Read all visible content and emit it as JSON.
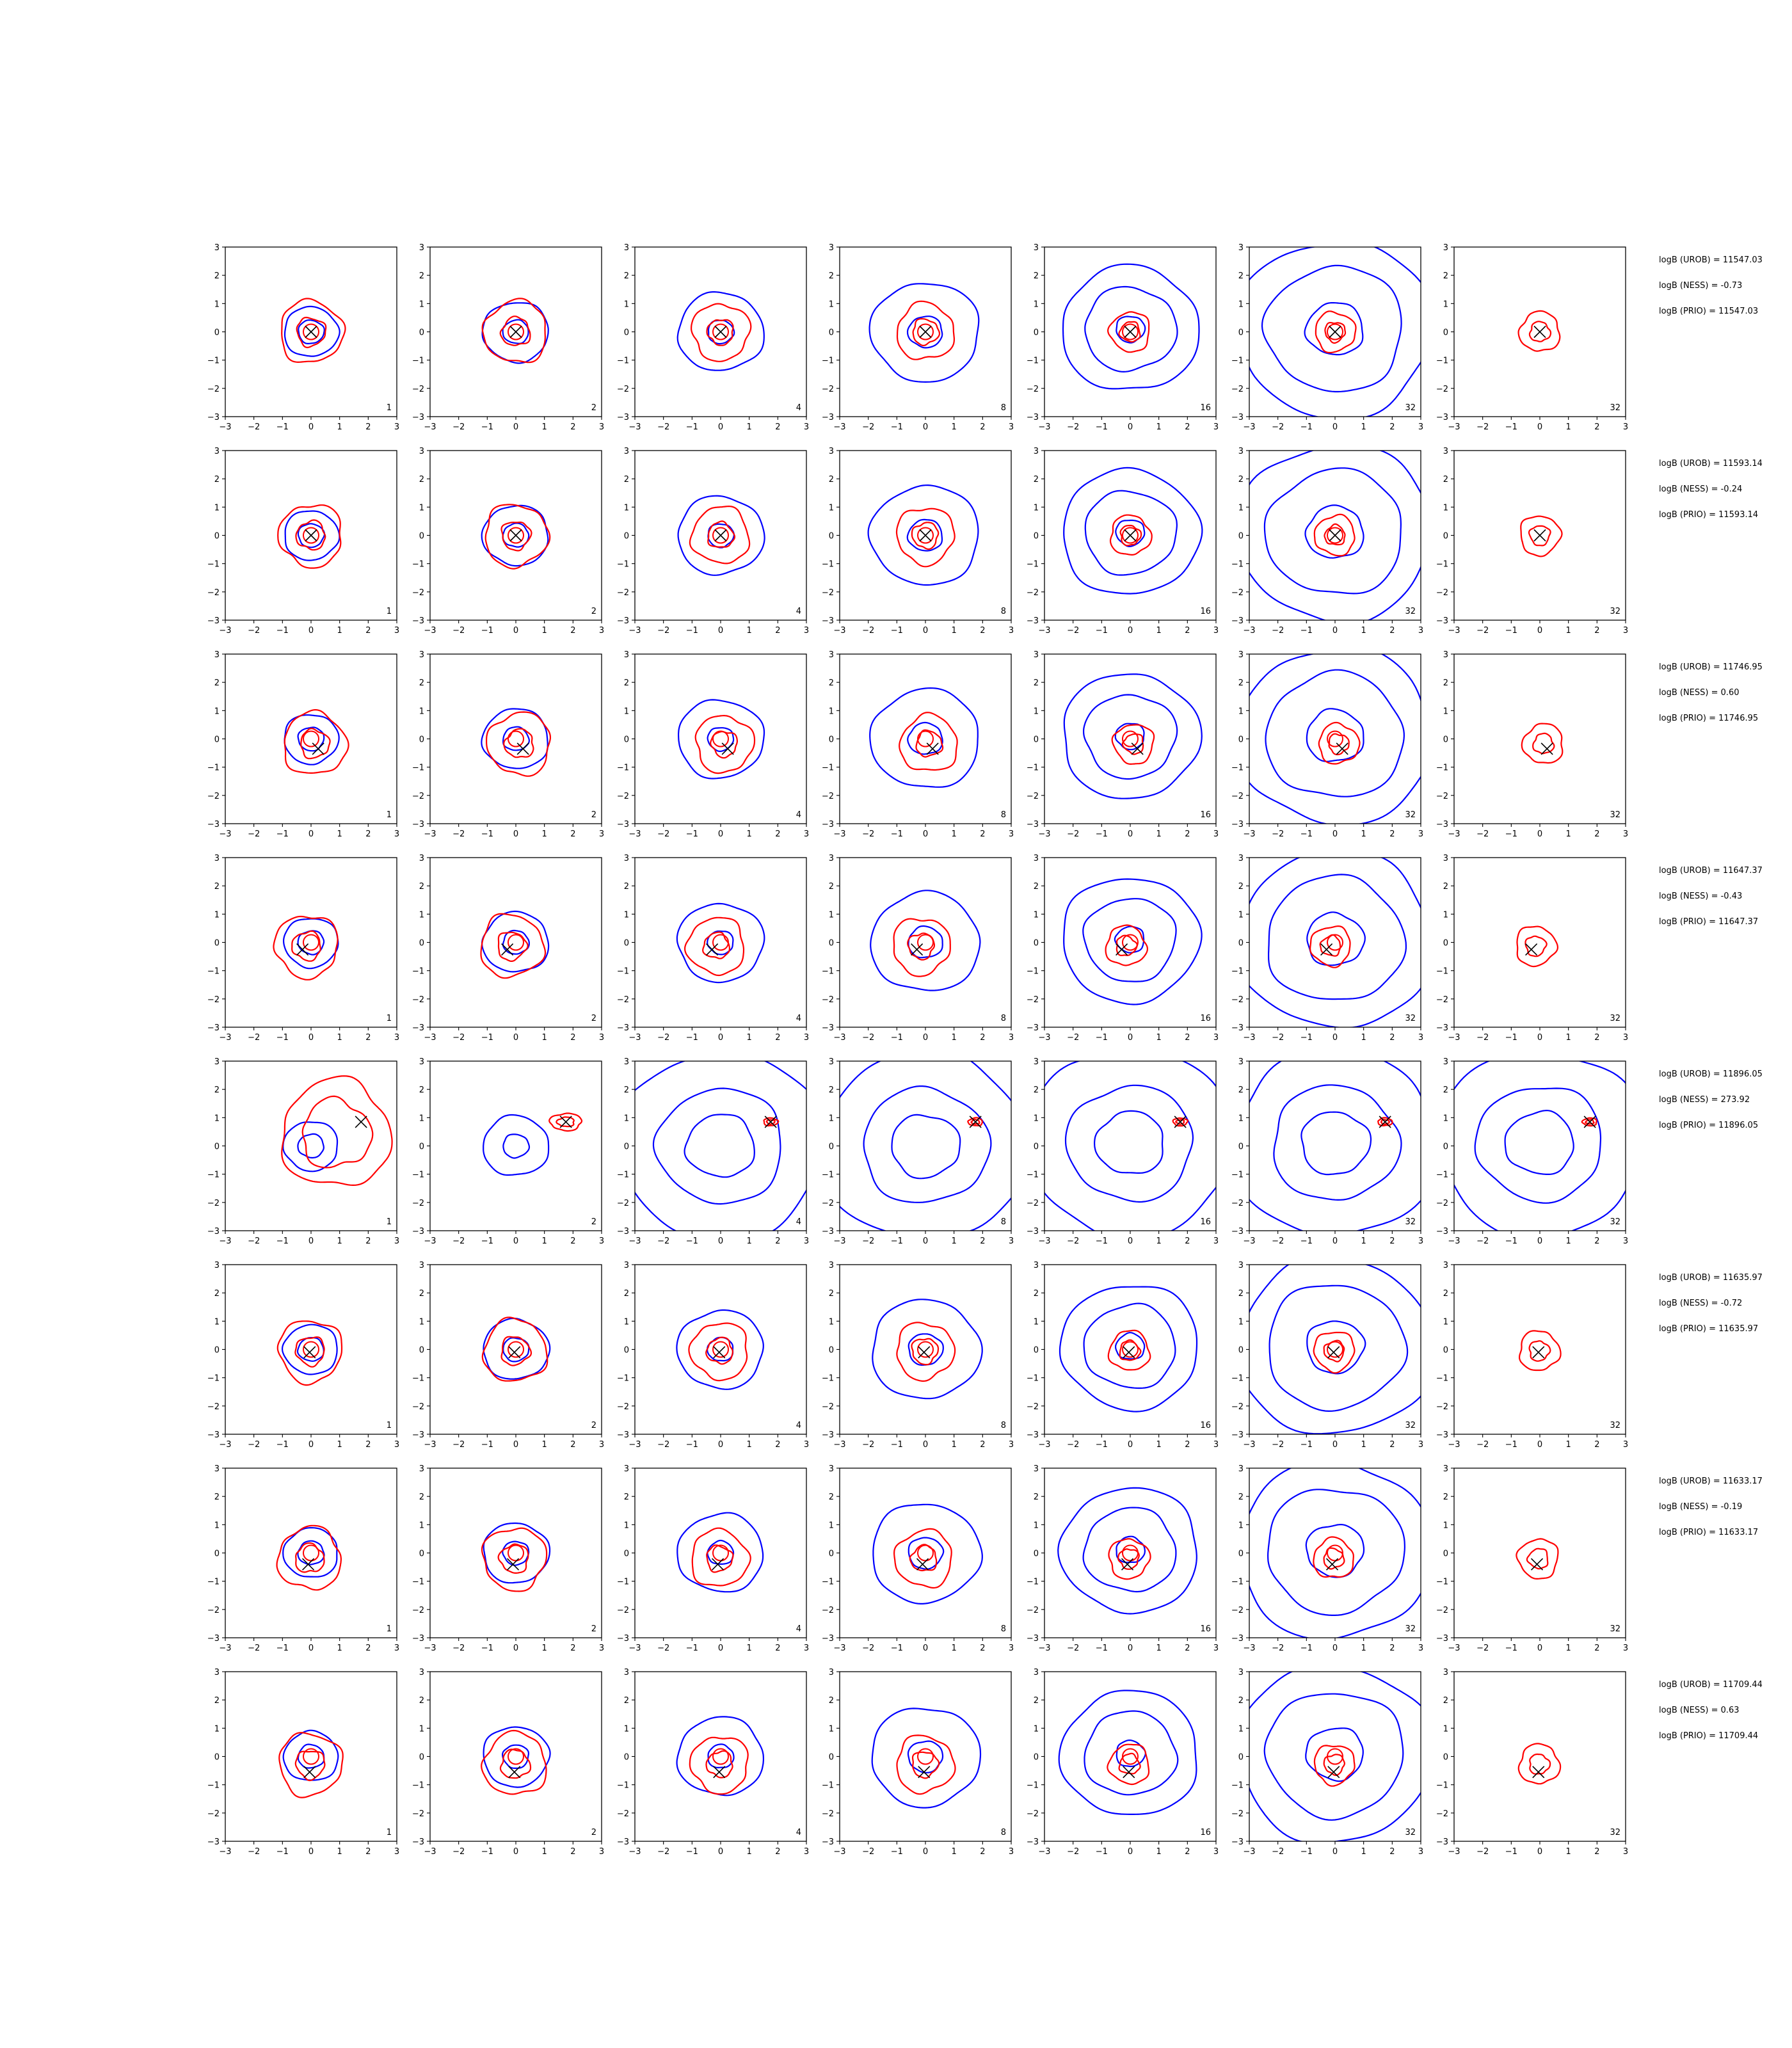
{
  "colors": {
    "contour_a": "#0000ff",
    "contour_b": "#ff0000",
    "marker": "#000000",
    "axes": "#000000"
  },
  "grid": {
    "rows": 8,
    "cols": 7
  },
  "col_tags": [
    "1",
    "2",
    "4",
    "8",
    "16",
    "32",
    "32"
  ],
  "axis_ticks": [
    "−3",
    "−2",
    "−1",
    "0",
    "1",
    "2",
    "3"
  ],
  "rows": [
    {
      "marker": [
        0.0,
        0.0
      ],
      "stats": [
        "logB (UROB) = 11547.03",
        "logB (NESS) = -0.73",
        "logB (PRIO) = 11547.03"
      ]
    },
    {
      "marker": [
        0.0,
        0.0
      ],
      "stats": [
        "logB (UROB) = 11593.14",
        "logB (NESS) = -0.24",
        "logB (PRIO) = 11593.14"
      ]
    },
    {
      "marker": [
        0.25,
        -0.35
      ],
      "stats": [
        "logB (UROB) = 11746.95",
        "logB (NESS) = 0.60",
        "logB (PRIO) = 11746.95"
      ]
    },
    {
      "marker": [
        -0.3,
        -0.25
      ],
      "stats": [
        "logB (UROB) = 11647.37",
        "logB (NESS) = -0.43",
        "logB (PRIO) = 11647.37"
      ]
    },
    {
      "marker": [
        1.75,
        0.85
      ],
      "stats": [
        "logB (UROB) = 11896.05",
        "logB (NESS) = 273.92",
        "logB (PRIO) = 11896.05"
      ]
    },
    {
      "marker": [
        -0.05,
        -0.1
      ],
      "stats": [
        "logB (UROB) = 11635.97",
        "logB (NESS) = -0.72",
        "logB (PRIO) = 11635.97"
      ]
    },
    {
      "marker": [
        -0.1,
        -0.4
      ],
      "stats": [
        "logB (UROB) = 11633.17",
        "logB (NESS) = -0.19",
        "logB (PRIO) = 11633.17"
      ]
    },
    {
      "marker": [
        -0.05,
        -0.55
      ],
      "stats": [
        "logB (UROB) = 11709.44",
        "logB (NESS) = 0.63",
        "logB (PRIO) = 11709.44"
      ]
    }
  ],
  "chart_data": {
    "type": "contour-grid",
    "xlim": [
      -3,
      3
    ],
    "ylim": [
      -3,
      3
    ],
    "xticks": [
      -3,
      -2,
      -1,
      0,
      1,
      2,
      3
    ],
    "yticks": [
      -3,
      -2,
      -1,
      0,
      1,
      2,
      3
    ],
    "grid": false,
    "panel_annotations_by_column": [
      "1",
      "2",
      "4",
      "8",
      "16",
      "32",
      "32"
    ],
    "series_colors": [
      "blue",
      "red"
    ],
    "marker": "x"
  }
}
